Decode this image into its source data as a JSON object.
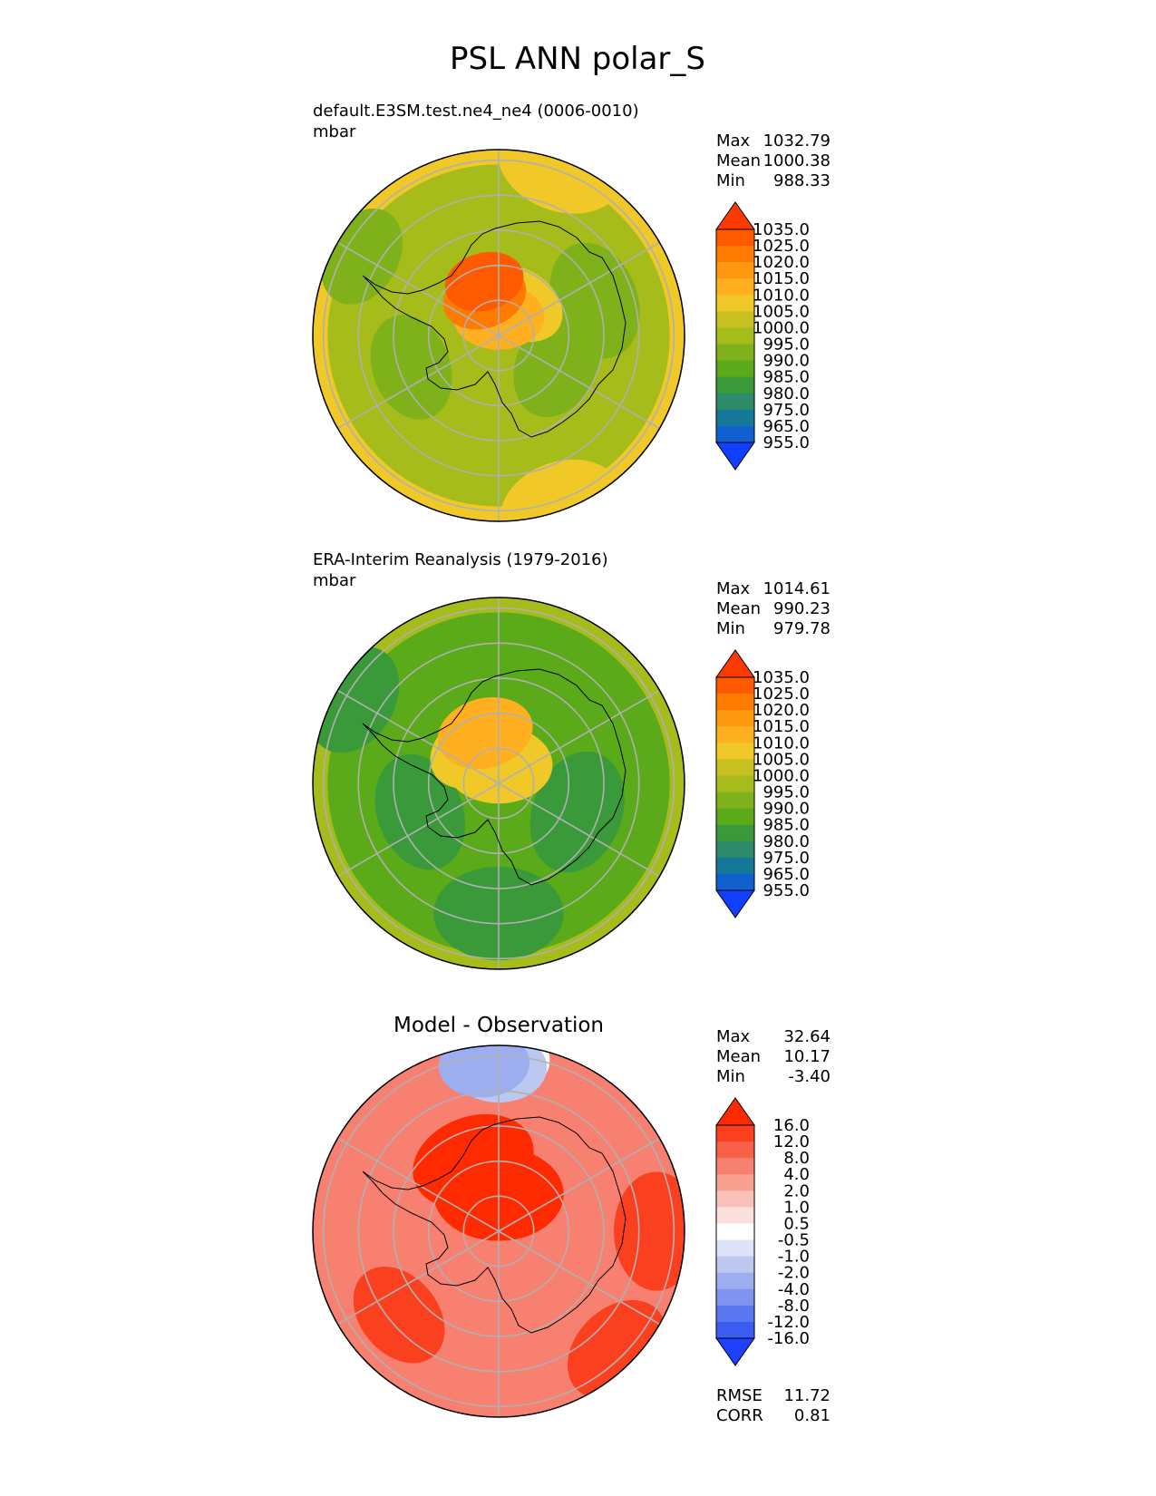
{
  "figure": {
    "title": "PSL ANN polar_S"
  },
  "palettes": {
    "absolute": [
      "#1040ff",
      "#1060d0",
      "#147898",
      "#2d8a6a",
      "#3a9a3a",
      "#5aaa1a",
      "#7fb21a",
      "#a6bc1a",
      "#c8c020",
      "#f0c828",
      "#ffb020",
      "#ff9a10",
      "#ff7a00",
      "#ff5a00",
      "#ff3a00"
    ],
    "difference": [
      "#1f40ff",
      "#3a5cf0",
      "#5c78f0",
      "#7e94f0",
      "#9caef0",
      "#bcc8f0",
      "#dde3fa",
      "#ffffff",
      "#fce0dc",
      "#f8c0b8",
      "#f7a090",
      "#f88070",
      "#f86048",
      "#fb4020",
      "#ff2a00"
    ]
  },
  "panels": [
    {
      "id": "test",
      "title": "default.E3SM.test.ne4_ne4 (0006-0010)",
      "units": "mbar",
      "stats": [
        {
          "label": "Max",
          "value": "1032.79"
        },
        {
          "label": "Mean",
          "value": "1000.38"
        },
        {
          "label": "Min",
          "value": "988.33"
        }
      ],
      "colorbar_levels": [
        "1035.0",
        "1025.0",
        "1020.0",
        "1015.0",
        "1010.0",
        "1005.0",
        "1000.0",
        "995.0",
        "990.0",
        "985.0",
        "980.0",
        "975.0",
        "965.0",
        "955.0"
      ],
      "chart_data": {
        "type": "heatmap",
        "projection": "south polar stereographic",
        "variable": "PSL",
        "units": "mbar",
        "max": 1032.79,
        "mean": 1000.38,
        "min": 988.33,
        "levels": [
          955,
          965,
          975,
          980,
          985,
          990,
          995,
          1000,
          1005,
          1010,
          1015,
          1020,
          1025,
          1035
        ],
        "background_level": 998,
        "rim_level": 1006,
        "blobs": [
          {
            "lon": 20,
            "dist": 0.98,
            "level": 1008
          },
          {
            "lon": 160,
            "dist": 0.98,
            "level": 1008
          },
          {
            "lon": 70,
            "dist": 0.55,
            "level": 994
          },
          {
            "lon": 115,
            "dist": 0.35,
            "level": 994
          },
          {
            "lon": 250,
            "dist": 0.5,
            "level": 994
          },
          {
            "lon": 300,
            "dist": 0.85,
            "level": 991
          },
          {
            "lon": 30,
            "dist": 0.2,
            "level": 1006
          },
          {
            "lon": 0,
            "dist": 0.1,
            "level": 1014
          },
          {
            "lon": 340,
            "dist": 0.22,
            "level": 1022
          },
          {
            "lon": 345,
            "dist": 0.3,
            "level": 1026
          }
        ]
      }
    },
    {
      "id": "reference",
      "title": "ERA-Interim Reanalysis (1979-2016)",
      "units": "mbar",
      "stats": [
        {
          "label": "Max",
          "value": "1014.61"
        },
        {
          "label": "Mean",
          "value": "990.23"
        },
        {
          "label": "Min",
          "value": "979.78"
        }
      ],
      "colorbar_levels": [
        "1035.0",
        "1025.0",
        "1020.0",
        "1015.0",
        "1010.0",
        "1005.0",
        "1000.0",
        "995.0",
        "990.0",
        "985.0",
        "980.0",
        "975.0",
        "965.0",
        "955.0"
      ],
      "chart_data": {
        "type": "heatmap",
        "projection": "south polar stereographic",
        "variable": "PSL",
        "units": "mbar",
        "max": 1014.61,
        "mean": 990.23,
        "min": 979.78,
        "levels": [
          955,
          965,
          975,
          980,
          985,
          990,
          995,
          1000,
          1005,
          1010,
          1015,
          1020,
          1025,
          1035
        ],
        "background_level": 986,
        "rim_level": 995,
        "blobs": [
          {
            "lon": 180,
            "dist": 0.7,
            "level": 983
          },
          {
            "lon": 110,
            "dist": 0.45,
            "level": 983
          },
          {
            "lon": 250,
            "dist": 0.45,
            "level": 983
          },
          {
            "lon": 300,
            "dist": 0.9,
            "level": 981
          },
          {
            "lon": 0,
            "dist": 0.1,
            "level": 1006
          },
          {
            "lon": 330,
            "dist": 0.22,
            "level": 1007
          },
          {
            "lon": 345,
            "dist": 0.28,
            "level": 1013
          }
        ]
      }
    },
    {
      "id": "difference",
      "title": "Model - Observation",
      "units": "",
      "stats": [
        {
          "label": "Max",
          "value": "32.64"
        },
        {
          "label": "Mean",
          "value": "10.17"
        },
        {
          "label": "Min",
          "value": "-3.40"
        }
      ],
      "colorbar_levels": [
        "16.0",
        "12.0",
        "8.0",
        "4.0",
        "2.0",
        "1.0",
        "0.5",
        "-0.5",
        "-1.0",
        "-2.0",
        "-4.0",
        "-8.0",
        "-12.0",
        "-16.0"
      ],
      "metrics": [
        {
          "label": "RMSE",
          "value": "11.72"
        },
        {
          "label": "CORR",
          "value": "0.81"
        }
      ],
      "chart_data": {
        "type": "heatmap",
        "projection": "south polar stereographic",
        "variable": "PSL difference",
        "units": "mbar",
        "max": 32.64,
        "mean": 10.17,
        "min": -3.4,
        "rmse": 11.72,
        "corr": 0.81,
        "levels": [
          -16,
          -12,
          -8,
          -4,
          -2,
          -1,
          -0.5,
          0.5,
          1,
          2,
          4,
          8,
          12,
          16
        ],
        "background_level": 7,
        "rim_level": 6,
        "blobs": [
          {
            "lon": 0,
            "dist": 0.2,
            "level": 18
          },
          {
            "lon": 340,
            "dist": 0.4,
            "level": 17
          },
          {
            "lon": 90,
            "dist": 0.85,
            "level": 14
          },
          {
            "lon": 135,
            "dist": 0.9,
            "level": 13
          },
          {
            "lon": 230,
            "dist": 0.7,
            "level": 12
          },
          {
            "lon": 0,
            "dist": 0.92,
            "level": 0
          },
          {
            "lon": 0,
            "dist": 0.88,
            "level": -1.5
          },
          {
            "lon": 355,
            "dist": 0.9,
            "level": -3
          }
        ]
      }
    }
  ]
}
